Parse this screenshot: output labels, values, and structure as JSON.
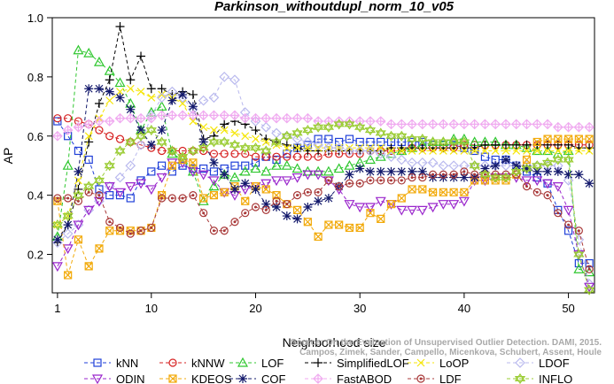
{
  "chart_data": {
    "type": "line",
    "title": "Parkinson_withoutdupl_norm_10_v05",
    "xlabel": "Neighborhood size",
    "ylabel": "AP",
    "xlim": [
      0.5,
      52.5
    ],
    "ylim": [
      0.07,
      1.0
    ],
    "xticks": [
      1,
      10,
      20,
      30,
      40,
      50
    ],
    "yticks": [
      0.2,
      0.4,
      0.6,
      0.8,
      1.0
    ],
    "ytick_labels": [
      "0.2",
      "0.4",
      "0.6",
      "0.8",
      "1.0"
    ],
    "grid": false,
    "legend_position": "bottom",
    "credit_lines": [
      "Source: On the Evaluation of Unsupervised Outlier Detection. DAMI, 2015.",
      "Campos, Zimek, Sander, Campello, Micenkova, Schubert, Assent, Houle"
    ],
    "x": [
      1,
      2,
      3,
      4,
      5,
      6,
      7,
      8,
      9,
      10,
      11,
      12,
      13,
      14,
      15,
      16,
      17,
      18,
      19,
      20,
      21,
      22,
      23,
      24,
      25,
      26,
      27,
      28,
      29,
      30,
      31,
      32,
      33,
      34,
      35,
      36,
      37,
      38,
      39,
      40,
      41,
      42,
      43,
      44,
      45,
      46,
      47,
      48,
      49,
      50,
      51,
      52
    ],
    "series": [
      {
        "name": "kNN",
        "color": "#1f3fd8",
        "marker": "square",
        "values": [
          0.65,
          0.6,
          0.55,
          0.52,
          0.42,
          0.4,
          0.4,
          0.39,
          0.45,
          0.48,
          0.5,
          0.48,
          0.5,
          0.49,
          0.49,
          0.48,
          0.49,
          0.5,
          0.5,
          0.51,
          0.53,
          0.52,
          0.54,
          0.56,
          0.57,
          0.59,
          0.59,
          0.58,
          0.59,
          0.58,
          0.58,
          0.58,
          0.58,
          0.58,
          0.58,
          0.58,
          0.57,
          0.57,
          0.57,
          0.56,
          0.55,
          0.53,
          0.52,
          0.52,
          0.5,
          0.48,
          0.46,
          0.44,
          0.35,
          0.28,
          0.17,
          0.17
        ]
      },
      {
        "name": "kNNW",
        "color": "#d62020",
        "marker": "circle",
        "values": [
          0.66,
          0.66,
          0.65,
          0.64,
          0.62,
          0.6,
          0.59,
          0.58,
          0.57,
          0.56,
          0.55,
          0.55,
          0.55,
          0.55,
          0.55,
          0.54,
          0.54,
          0.54,
          0.54,
          0.53,
          0.53,
          0.53,
          0.53,
          0.53,
          0.53,
          0.53,
          0.54,
          0.54,
          0.54,
          0.54,
          0.55,
          0.55,
          0.55,
          0.55,
          0.56,
          0.56,
          0.56,
          0.56,
          0.56,
          0.57,
          0.57,
          0.57,
          0.57,
          0.57,
          0.57,
          0.57,
          0.57,
          0.57,
          0.57,
          0.57,
          0.57,
          0.57
        ]
      },
      {
        "name": "LOF",
        "color": "#2fc72f",
        "marker": "triangle-up",
        "values": [
          0.26,
          0.5,
          0.89,
          0.88,
          0.85,
          0.82,
          0.78,
          0.71,
          0.62,
          0.68,
          0.7,
          0.54,
          0.52,
          0.48,
          0.38,
          0.43,
          0.47,
          0.46,
          0.48,
          0.49,
          0.48,
          0.5,
          0.5,
          0.49,
          0.48,
          0.48,
          0.48,
          0.49,
          0.5,
          0.51,
          0.52,
          0.53,
          0.54,
          0.55,
          0.56,
          0.57,
          0.58,
          0.58,
          0.59,
          0.59,
          0.58,
          0.58,
          0.58,
          0.57,
          0.57,
          0.56,
          0.55,
          0.55,
          0.54,
          0.55,
          0.15,
          0.14
        ]
      },
      {
        "name": "SimplifiedLOF",
        "color": "#000000",
        "marker": "plus",
        "values": [
          0.24,
          0.3,
          0.42,
          0.58,
          0.71,
          0.79,
          0.97,
          0.79,
          0.87,
          0.76,
          0.76,
          0.74,
          0.75,
          0.74,
          0.59,
          0.6,
          0.64,
          0.65,
          0.64,
          0.62,
          0.59,
          0.58,
          0.57,
          0.56,
          0.55,
          0.55,
          0.55,
          0.55,
          0.55,
          0.55,
          0.55,
          0.55,
          0.56,
          0.56,
          0.56,
          0.56,
          0.56,
          0.56,
          0.56,
          0.56,
          0.56,
          0.57,
          0.57,
          0.57,
          0.57,
          0.57,
          0.57,
          0.57,
          0.57,
          0.57,
          0.56,
          0.56
        ]
      },
      {
        "name": "LoOP",
        "color": "#f5e60a",
        "marker": "cross",
        "values": [
          0.3,
          0.33,
          0.45,
          0.6,
          0.66,
          0.72,
          0.75,
          0.76,
          0.75,
          0.73,
          0.74,
          0.73,
          0.71,
          0.65,
          0.63,
          0.62,
          0.62,
          0.61,
          0.6,
          0.59,
          0.58,
          0.57,
          0.56,
          0.56,
          0.56,
          0.56,
          0.56,
          0.56,
          0.56,
          0.56,
          0.56,
          0.56,
          0.55,
          0.55,
          0.55,
          0.55,
          0.55,
          0.55,
          0.55,
          0.55,
          0.55,
          0.55,
          0.55,
          0.55,
          0.55,
          0.55,
          0.55,
          0.55,
          0.55,
          0.55,
          0.55,
          0.55
        ]
      },
      {
        "name": "LDOF",
        "color": "#b9b9ee",
        "marker": "diamond",
        "values": [
          0.24,
          0.27,
          0.3,
          0.35,
          0.38,
          0.43,
          0.46,
          0.5,
          0.57,
          0.67,
          0.73,
          0.75,
          0.73,
          0.69,
          0.72,
          0.73,
          0.8,
          0.79,
          0.68,
          0.65,
          0.63,
          0.61,
          0.6,
          0.59,
          0.58,
          0.57,
          0.56,
          0.56,
          0.55,
          0.55,
          0.55,
          0.54,
          0.53,
          0.52,
          0.51,
          0.51,
          0.51,
          0.5,
          0.5,
          0.5,
          0.5,
          0.5,
          0.5,
          0.5,
          0.5,
          0.5,
          0.5,
          0.5,
          0.5,
          0.45,
          0.25,
          0.1
        ]
      },
      {
        "name": "ODIN",
        "color": "#9a26cc",
        "marker": "triangle-down",
        "values": [
          0.16,
          0.22,
          0.3,
          0.35,
          0.38,
          0.43,
          0.41,
          0.43,
          0.44,
          0.42,
          0.46,
          0.51,
          0.51,
          0.48,
          0.47,
          0.45,
          0.41,
          0.4,
          0.42,
          0.43,
          0.44,
          0.45,
          0.45,
          0.46,
          0.47,
          0.47,
          0.45,
          0.42,
          0.37,
          0.36,
          0.36,
          0.38,
          0.37,
          0.35,
          0.35,
          0.35,
          0.36,
          0.37,
          0.37,
          0.38,
          0.45,
          0.45,
          0.46,
          0.46,
          0.46,
          0.45,
          0.45,
          0.44,
          0.43,
          0.35,
          0.2,
          0.09
        ]
      },
      {
        "name": "KDEOS",
        "color": "#f2aa0a",
        "marker": "square-x",
        "values": [
          0.38,
          0.13,
          0.25,
          0.16,
          0.22,
          0.28,
          0.28,
          0.28,
          0.28,
          0.29,
          0.4,
          0.5,
          0.52,
          0.51,
          0.39,
          0.4,
          0.41,
          0.43,
          0.38,
          0.43,
          0.42,
          0.4,
          0.37,
          0.35,
          0.31,
          0.26,
          0.3,
          0.3,
          0.29,
          0.29,
          0.34,
          0.32,
          0.37,
          0.39,
          0.42,
          0.42,
          0.41,
          0.41,
          0.41,
          0.41,
          0.45,
          0.45,
          0.45,
          0.45,
          0.47,
          0.52,
          0.58,
          0.59,
          0.59,
          0.59,
          0.59,
          0.59
        ]
      },
      {
        "name": "COF",
        "color": "#12186b",
        "marker": "asterisk",
        "values": [
          0.25,
          0.3,
          0.48,
          0.76,
          0.76,
          0.75,
          0.73,
          0.69,
          0.62,
          0.57,
          0.62,
          0.72,
          0.74,
          0.7,
          0.58,
          0.51,
          0.47,
          0.42,
          0.44,
          0.42,
          0.37,
          0.36,
          0.33,
          0.32,
          0.36,
          0.38,
          0.39,
          0.43,
          0.47,
          0.49,
          0.48,
          0.48,
          0.48,
          0.48,
          0.48,
          0.48,
          0.46,
          0.46,
          0.46,
          0.46,
          0.46,
          0.49,
          0.5,
          0.52,
          0.5,
          0.49,
          0.48,
          0.48,
          0.48,
          0.47,
          0.47,
          0.44
        ]
      },
      {
        "name": "FastABOD",
        "color": "#f0aaf0",
        "marker": "diamond-plus",
        "values": [
          0.6,
          0.62,
          0.63,
          0.64,
          0.65,
          0.65,
          0.66,
          0.66,
          0.66,
          0.66,
          0.67,
          0.67,
          0.67,
          0.67,
          0.67,
          0.67,
          0.67,
          0.67,
          0.66,
          0.66,
          0.66,
          0.66,
          0.66,
          0.66,
          0.66,
          0.65,
          0.65,
          0.65,
          0.65,
          0.65,
          0.65,
          0.65,
          0.64,
          0.64,
          0.64,
          0.64,
          0.64,
          0.64,
          0.64,
          0.64,
          0.64,
          0.64,
          0.64,
          0.64,
          0.64,
          0.64,
          0.64,
          0.64,
          0.63,
          0.63,
          0.63,
          0.63
        ]
      },
      {
        "name": "LDF",
        "color": "#a83838",
        "marker": "circle-dot",
        "values": [
          0.39,
          0.39,
          0.38,
          0.41,
          0.4,
          0.31,
          0.29,
          0.27,
          0.28,
          0.29,
          0.39,
          0.39,
          0.39,
          0.4,
          0.34,
          0.28,
          0.28,
          0.31,
          0.34,
          0.36,
          0.35,
          0.38,
          0.37,
          0.4,
          0.41,
          0.41,
          0.45,
          0.43,
          0.44,
          0.44,
          0.45,
          0.45,
          0.45,
          0.45,
          0.46,
          0.46,
          0.47,
          0.47,
          0.47,
          0.48,
          0.47,
          0.47,
          0.47,
          0.47,
          0.47,
          0.43,
          0.41,
          0.4,
          0.34,
          0.3,
          0.28,
          0.15
        ]
      },
      {
        "name": "INFLO",
        "color": "#9acc33",
        "marker": "star-of-david",
        "values": [
          0.3,
          0.33,
          0.4,
          0.43,
          0.45,
          0.5,
          0.55,
          0.58,
          0.6,
          0.62,
          0.58,
          0.55,
          0.53,
          0.55,
          0.56,
          0.58,
          0.58,
          0.57,
          0.56,
          0.56,
          0.55,
          0.58,
          0.6,
          0.61,
          0.62,
          0.63,
          0.63,
          0.64,
          0.64,
          0.63,
          0.62,
          0.61,
          0.6,
          0.6,
          0.59,
          0.59,
          0.58,
          0.58,
          0.58,
          0.58,
          0.5,
          0.47,
          0.46,
          0.46,
          0.48,
          0.49,
          0.5,
          0.51,
          0.52,
          0.52,
          0.2,
          0.08
        ]
      }
    ],
    "legend_rows": [
      [
        "kNN",
        "kNNW",
        "LOF",
        "SimplifiedLOF",
        "LoOP",
        "LDOF"
      ],
      [
        "ODIN",
        "KDEOS",
        "COF",
        "FastABOD",
        "LDF",
        "INFLO"
      ]
    ]
  }
}
